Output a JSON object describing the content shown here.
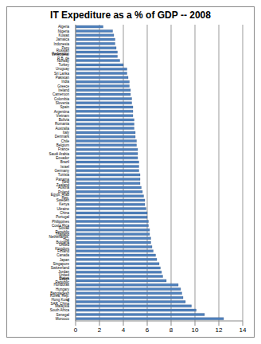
{
  "chart_data": {
    "type": "bar",
    "orientation": "horizontal",
    "title": "IT Expediture as a % of GDP -- 2008",
    "categories": [
      "Algeria",
      "Nigeria",
      "Kuwait",
      "Jamaica",
      "Indonesia",
      "Peru",
      "Russian Federation",
      "Venezuela, R.B. de",
      "Norway",
      "Turkey",
      "Uruguay",
      "Sri Lanka",
      "Pakistan",
      "India",
      "Greece",
      "Ireland",
      "Cameroon",
      "Colombia",
      "Slovenia",
      "Spain",
      "Argentina",
      "Vietnam",
      "Bolivia",
      "Romania",
      "Australia",
      "Italy",
      "Denmark",
      "Chile",
      "Belgium",
      "France",
      "Saudi Arabia",
      "Ecuador",
      "Brazil",
      "Israel",
      "Germany",
      "Tunisia",
      "Panama",
      "New Zealand",
      "Austria",
      "Poland",
      "Egypt, Arab Rep.",
      "Sweden",
      "Kenya",
      "Ukraine",
      "China",
      "Portugal",
      "Philippines",
      "Costa Rica",
      "Slovak Republic",
      "Thailand",
      "Netherlands, The",
      "Bulgaria",
      "United Kingdom",
      "Finland",
      "Canada",
      "Japan",
      "Singapore",
      "Switzerland",
      "Jordan",
      "United States",
      "Czech Republic",
      "Honduras",
      "Hungary",
      "Bangladesh",
      "Korea, Rep. of",
      "Hong Kong SAR, China",
      "Malaysia",
      "South Africa",
      "Senegal",
      "Morocco"
    ],
    "values": [
      2.3,
      3.1,
      3.2,
      3.3,
      3.3,
      3.4,
      3.5,
      3.5,
      3.7,
      4.0,
      4.3,
      4.3,
      4.4,
      4.5,
      4.5,
      4.6,
      4.6,
      4.7,
      4.7,
      4.8,
      4.8,
      4.8,
      4.9,
      4.9,
      4.9,
      5.0,
      5.0,
      5.1,
      5.1,
      5.2,
      5.2,
      5.2,
      5.3,
      5.3,
      5.3,
      5.4,
      5.4,
      5.4,
      5.5,
      5.6,
      5.7,
      5.8,
      5.8,
      5.9,
      6.0,
      6.0,
      6.1,
      6.1,
      6.2,
      6.2,
      6.3,
      6.3,
      6.4,
      6.5,
      6.7,
      6.8,
      7.0,
      7.1,
      7.2,
      7.3,
      7.6,
      8.6,
      8.8,
      8.9,
      9.0,
      9.2,
      9.7,
      10.1,
      10.8,
      12.4
    ],
    "color": "#4f81bd",
    "xlim": [
      0,
      14
    ],
    "xticks": [
      0,
      2,
      4,
      6,
      8,
      10,
      12,
      14
    ],
    "grid": true
  }
}
